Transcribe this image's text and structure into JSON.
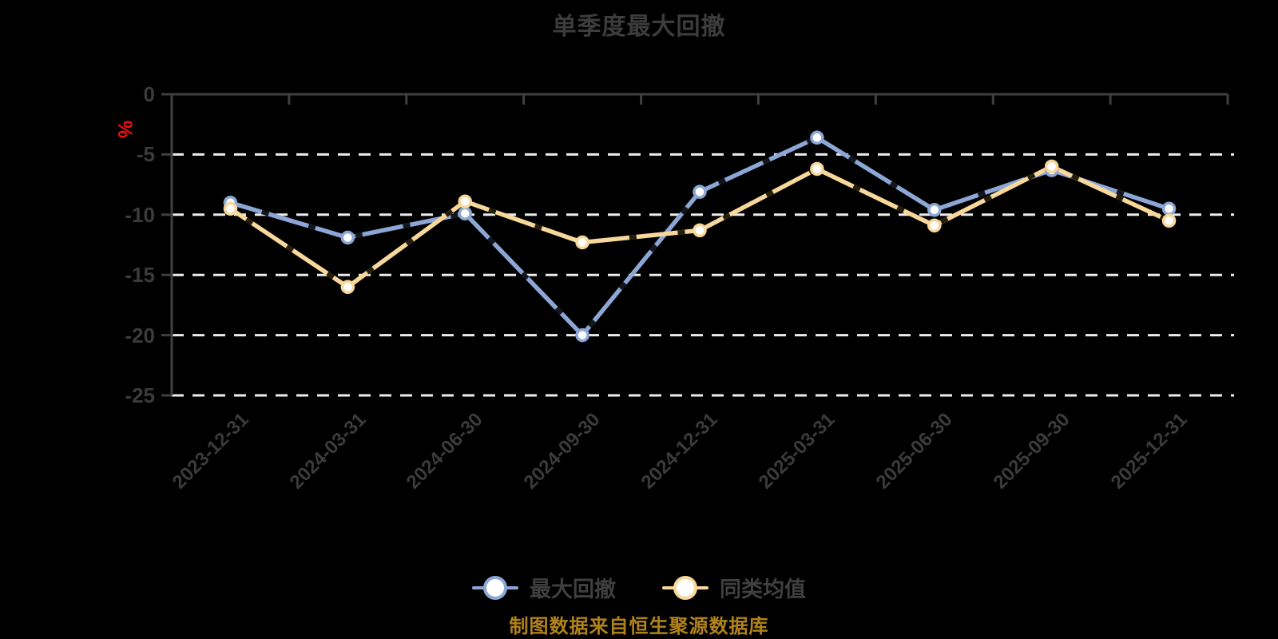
{
  "title": "单季度最大回撤",
  "y_axis": {
    "unit": "%"
  },
  "source_note": "制图数据来自恒生聚源数据库",
  "legend": {
    "items": [
      "最大回撤",
      "同类均值"
    ]
  },
  "chart_data": {
    "type": "line",
    "title": "单季度最大回撤",
    "xlabel": "",
    "ylabel": "%",
    "ylim": [
      -25,
      0
    ],
    "yticks": [
      0,
      -5,
      -10,
      -15,
      -20,
      -25
    ],
    "grid": "horizontal-dashed",
    "legend_position": "bottom",
    "categories": [
      "2023-12-31",
      "2024-03-31",
      "2024-06-30",
      "2024-09-30",
      "2024-12-31",
      "2025-03-31",
      "2025-06-30",
      "2025-09-30",
      "2025-12-31"
    ],
    "series": [
      {
        "name": "最大回撤",
        "color": "#8ca6d5",
        "dash_accent": "#14161d",
        "values": [
          -9.0,
          -11.9,
          -9.9,
          -20.0,
          -8.1,
          -3.6,
          -9.6,
          -6.3,
          -9.5
        ]
      },
      {
        "name": "同类均值",
        "color": "#f8d79b",
        "dash_accent": "#241d0b",
        "values": [
          -9.5,
          -16.0,
          -8.9,
          -12.3,
          -11.3,
          -6.2,
          -10.9,
          -6.0,
          -10.5
        ]
      }
    ]
  },
  "colors": {
    "background": "#000000",
    "axis": "#3f3f3f",
    "gridline": "#ececec",
    "tick_label": "#3b3b3b",
    "title": "#3c3c3c",
    "unit_label": "#f60c0c",
    "source_note": "#b0821a",
    "marker_fill": "#ffffff"
  }
}
